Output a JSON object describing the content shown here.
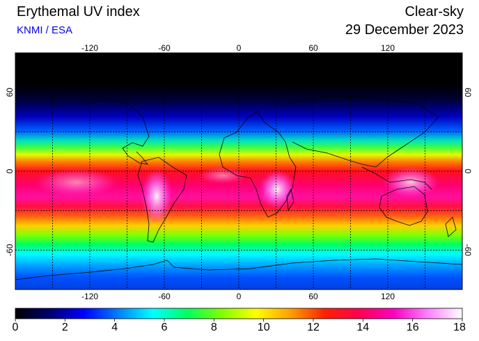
{
  "header": {
    "title": "Erythemal UV index",
    "credit": "KNMI / ESA",
    "sky_condition": "Clear-sky",
    "date": "29 December 2023"
  },
  "map": {
    "longitude_ticks": [
      "-120",
      "-60",
      "0",
      "60",
      "120"
    ],
    "latitude_ticks": [
      "60",
      "0",
      "-60"
    ],
    "gridline_spacing_deg": 30,
    "projection": "equirectangular",
    "coastlines": true
  },
  "colorbar": {
    "ticks": [
      "0",
      "2",
      "4",
      "6",
      "8",
      "10",
      "12",
      "14",
      "16",
      "18"
    ],
    "min": 0,
    "max": 18,
    "colors": [
      "#000000",
      "#00006e",
      "#0000ff",
      "#0080ff",
      "#00ffff",
      "#00ff60",
      "#80ff00",
      "#ffff00",
      "#ffa000",
      "#ff2000",
      "#ff0050",
      "#ff00c0",
      "#ff80ff",
      "#ffffff"
    ]
  }
}
